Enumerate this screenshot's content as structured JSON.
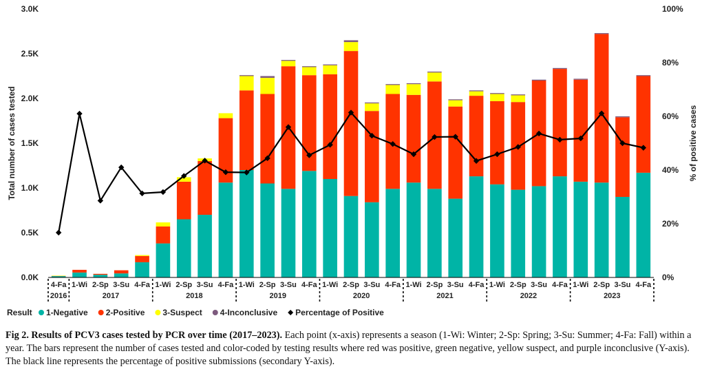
{
  "chart_data": {
    "type": "bar",
    "stacked": true,
    "categories": [
      "4-Fa",
      "1-Wi",
      "2-Sp",
      "3-Su",
      "4-Fa",
      "1-Wi",
      "2-Sp",
      "3-Su",
      "4-Fa",
      "1-Wi",
      "2-Sp",
      "3-Su",
      "4-Fa",
      "1-Wi",
      "2-Sp",
      "3-Su",
      "4-Fa",
      "1-Wi",
      "2-Sp",
      "3-Su",
      "4-Fa",
      "1-Wi",
      "2-Sp",
      "3-Su",
      "4-Fa",
      "1-Wi",
      "2-Sp",
      "3-Su",
      "4-Fa"
    ],
    "years": [
      {
        "label": "2016",
        "start": 0,
        "end": 0
      },
      {
        "label": "2017",
        "start": 1,
        "end": 4
      },
      {
        "label": "2018",
        "start": 5,
        "end": 8
      },
      {
        "label": "2019",
        "start": 9,
        "end": 12
      },
      {
        "label": "2020",
        "start": 13,
        "end": 16
      },
      {
        "label": "2021",
        "start": 17,
        "end": 20
      },
      {
        "label": "2022",
        "start": 21,
        "end": 24
      },
      {
        "label": "2023",
        "start": 25,
        "end": 28
      }
    ],
    "series": [
      {
        "name": "1-Negative",
        "color": "#00b4a6",
        "values": [
          15,
          55,
          30,
          45,
          170,
          380,
          650,
          700,
          1060,
          1200,
          1050,
          990,
          1190,
          1100,
          910,
          840,
          990,
          1060,
          990,
          880,
          1130,
          1040,
          980,
          1020,
          1130,
          1070,
          1060,
          900,
          1170
        ]
      },
      {
        "name": "2-Positive",
        "color": "#ff3300",
        "values": [
          3,
          30,
          10,
          35,
          70,
          190,
          420,
          600,
          720,
          890,
          1000,
          1370,
          1070,
          1170,
          1620,
          1020,
          1060,
          980,
          1200,
          1030,
          900,
          930,
          980,
          1180,
          1200,
          1140,
          1660,
          890,
          1080
        ]
      },
      {
        "name": "3-Suspect",
        "color": "#ffff00",
        "values": [
          2,
          0,
          0,
          0,
          10,
          45,
          50,
          30,
          55,
          160,
          180,
          60,
          90,
          100,
          100,
          85,
          100,
          120,
          100,
          70,
          50,
          80,
          75,
          0,
          0,
          0,
          0,
          0,
          0
        ]
      },
      {
        "name": "4-Inconclusive",
        "color": "#7d5a7e",
        "values": [
          0,
          0,
          0,
          0,
          0,
          0,
          0,
          0,
          0,
          10,
          20,
          10,
          10,
          10,
          20,
          10,
          10,
          10,
          10,
          10,
          10,
          10,
          10,
          10,
          10,
          10,
          10,
          10,
          10
        ]
      }
    ],
    "line": {
      "name": "Percentage of Positive",
      "color": "#000000",
      "values": [
        16.7,
        61,
        28.6,
        41,
        31.3,
        31.8,
        37.8,
        43.5,
        39.2,
        39.1,
        44.4,
        56,
        45.5,
        49.4,
        61.4,
        52.8,
        49.7,
        45.9,
        52.3,
        52.4,
        43.4,
        45.9,
        48.6,
        53.6,
        51.3,
        51.8,
        61.1,
        50,
        48.3
      ]
    },
    "ylabel": "Total number of cases tested",
    "y2label": "% of positive cases",
    "ylim": [
      0,
      3000
    ],
    "y2lim": [
      0,
      100
    ],
    "yticks": [
      "0.0K",
      "0.5K",
      "1.0K",
      "1.5K",
      "2.0K",
      "2.5K",
      "3.0K"
    ],
    "y2ticks": [
      "0%",
      "20%",
      "40%",
      "60%",
      "80%",
      "100%"
    ],
    "legend_title": "Result",
    "legend_position": "bottom-left",
    "grid": false
  },
  "caption": {
    "label": "Fig 2. Results of PCV3 cases tested by PCR over time (2017–2023).",
    "text": " Each point (x-axis) represents a season (1-Wi: Winter; 2-Sp: Spring; 3-Su: Summer; 4-Fa: Fall) within a year. The bars represent the number of cases tested and color-coded by testing results where red was positive, green negative, yellow suspect, and purple inconclusive (Y-axis). The black line represents the percentage of positive submissions (secondary Y-axis)."
  }
}
